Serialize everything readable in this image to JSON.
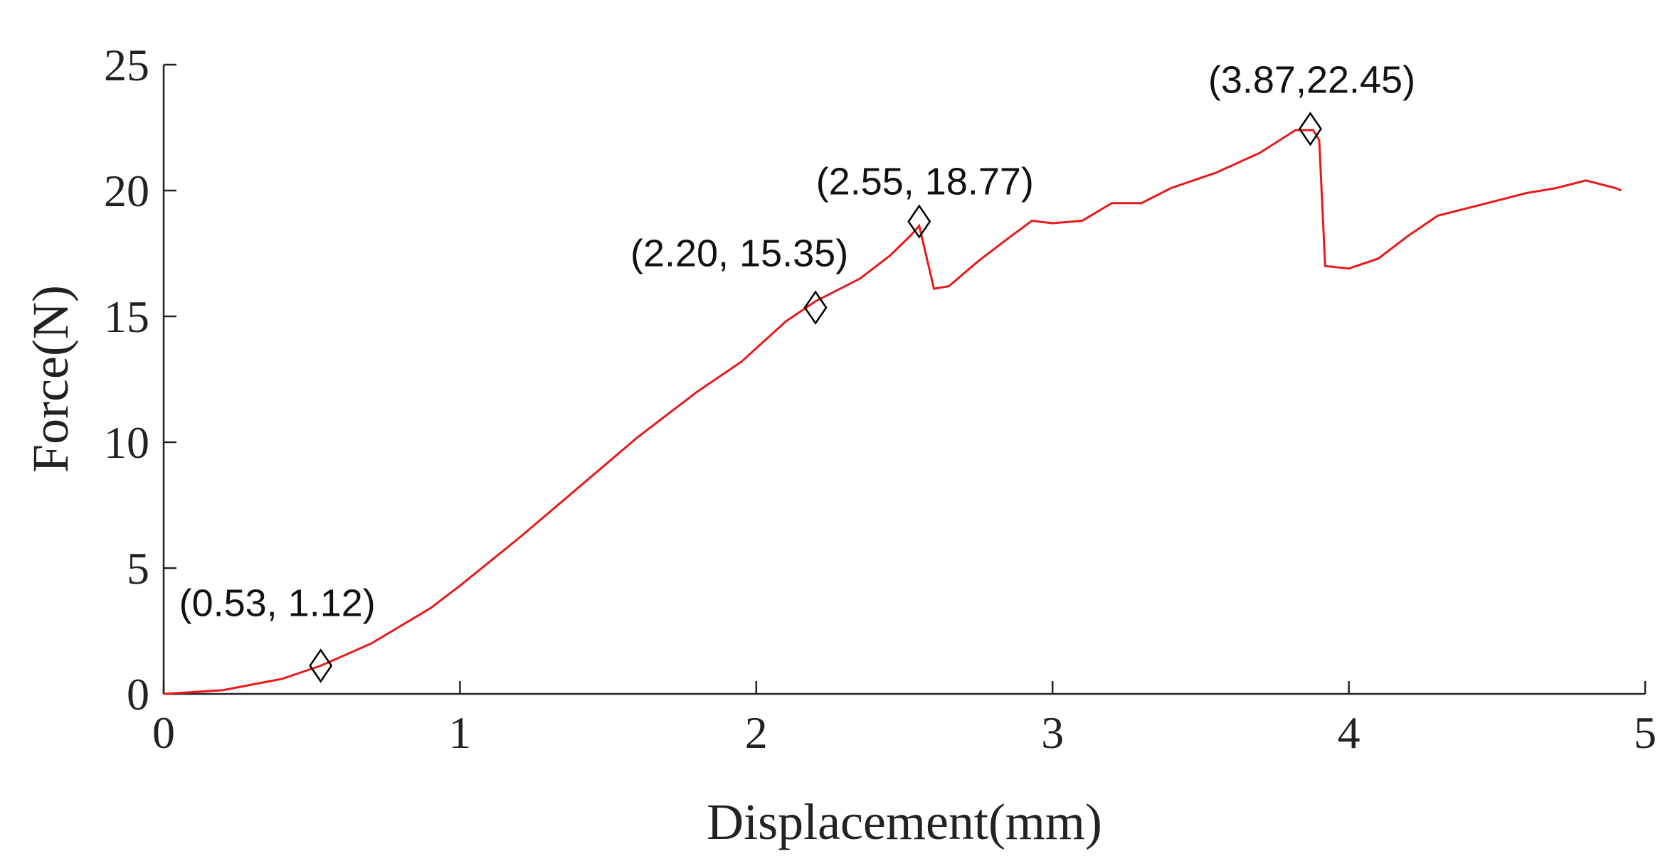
{
  "chart_data": {
    "type": "line",
    "x_label": "Displacement(mm)",
    "y_label": "Force(N)",
    "xlim": [
      0,
      5
    ],
    "xticks": [
      0,
      1,
      2,
      3,
      4,
      5
    ],
    "ylim": [
      0,
      25
    ],
    "yticks": [
      0,
      5,
      10,
      15,
      20,
      25
    ],
    "series": [
      {
        "color": "#e8191b",
        "x": [
          0,
          0.2,
          0.4,
          0.53,
          0.7,
          0.9,
          1.0,
          1.2,
          1.4,
          1.6,
          1.8,
          1.95,
          2.1,
          2.2,
          2.35,
          2.45,
          2.52,
          2.55,
          2.6,
          2.65,
          2.75,
          2.85,
          2.93,
          3.0,
          3.1,
          3.2,
          3.3,
          3.4,
          3.55,
          3.7,
          3.82,
          3.88,
          3.9,
          3.92,
          4.0,
          4.1,
          4.2,
          4.3,
          4.4,
          4.5,
          4.6,
          4.7,
          4.8,
          4.9,
          4.92
        ],
        "values": [
          0,
          0.15,
          0.6,
          1.12,
          2.0,
          3.4,
          4.3,
          6.2,
          8.2,
          10.2,
          12.0,
          13.2,
          14.8,
          15.6,
          16.5,
          17.4,
          18.2,
          18.6,
          16.1,
          16.2,
          17.2,
          18.1,
          18.8,
          18.7,
          18.8,
          19.5,
          19.5,
          20.1,
          20.7,
          21.5,
          22.4,
          22.4,
          22.0,
          17.0,
          16.9,
          17.3,
          18.2,
          19.0,
          19.3,
          19.6,
          19.9,
          20.1,
          20.4,
          20.1,
          20.0
        ]
      },
      {
        "color": "#000000",
        "marker": "diamond",
        "x": [
          0.53,
          2.2,
          2.55,
          3.87
        ],
        "values": [
          1.12,
          15.35,
          18.77,
          22.45
        ],
        "value_labels": [
          "(0.53, 1.12)",
          "(2.20, 15.35)",
          "(2.55, 18.77)",
          "(3.87,22.45)"
        ]
      }
    ]
  }
}
